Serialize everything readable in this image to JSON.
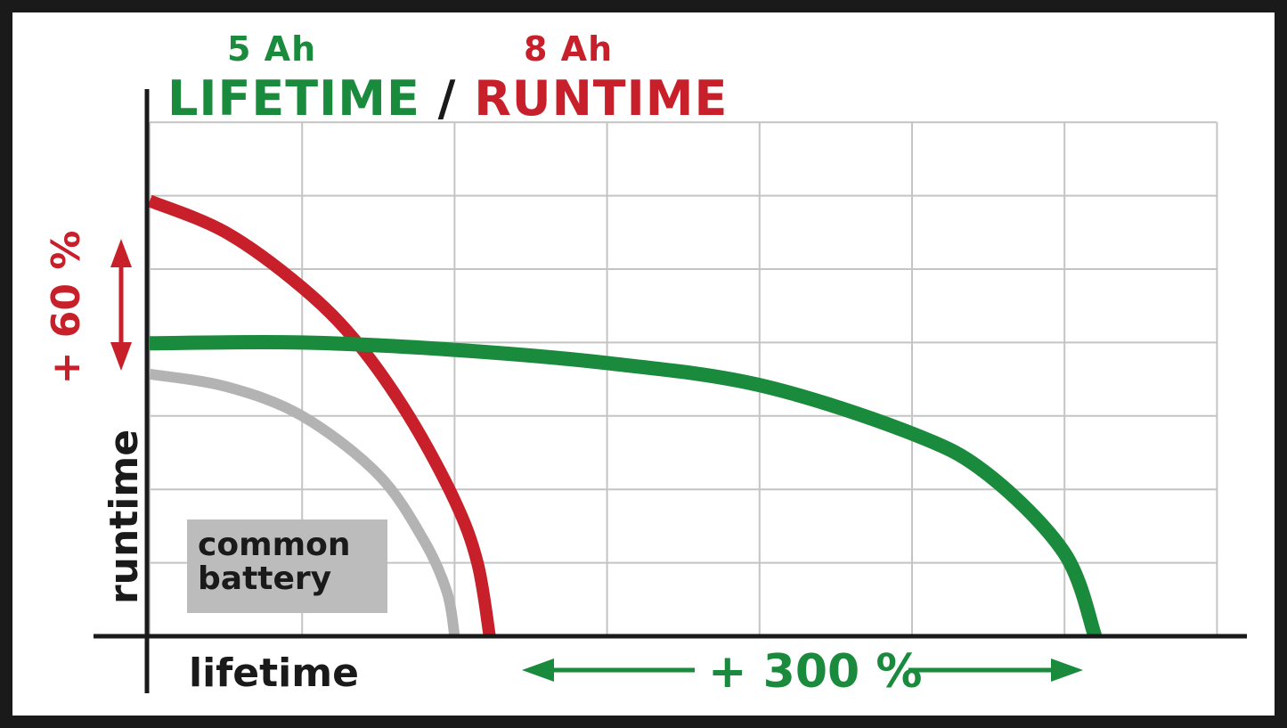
{
  "chart_data": {
    "type": "line",
    "title": {
      "left": "LIFETIME",
      "separator": "/",
      "right": "RUNTIME"
    },
    "subtitles": {
      "left": "5 Ah",
      "right": "8 Ah"
    },
    "xlabel": "lifetime",
    "ylabel": "runtime",
    "xlim": [
      0,
      7
    ],
    "ylim": [
      0,
      7
    ],
    "grid": true,
    "series": [
      {
        "name": "common battery",
        "color": "#b3b3b4",
        "points": [
          [
            0,
            3.57
          ],
          [
            0.5,
            3.4
          ],
          [
            1,
            3.0
          ],
          [
            1.5,
            2.2
          ],
          [
            1.8,
            1.3
          ],
          [
            1.95,
            0.6
          ],
          [
            2.0,
            0
          ]
        ]
      },
      {
        "color": "#c8202a",
        "points": [
          [
            0,
            5.93
          ],
          [
            0.5,
            5.5
          ],
          [
            1,
            4.75
          ],
          [
            1.36,
            4.0
          ],
          [
            1.7,
            3.0
          ],
          [
            2.0,
            1.85
          ],
          [
            2.15,
            1.0
          ],
          [
            2.23,
            0
          ]
        ]
      },
      {
        "color": "#1a8a3c",
        "points": [
          [
            0,
            3.99
          ],
          [
            1,
            4.0
          ],
          [
            2,
            3.9
          ],
          [
            3,
            3.72
          ],
          [
            4,
            3.42
          ],
          [
            5,
            2.76
          ],
          [
            5.5,
            2.2
          ],
          [
            6,
            1.13
          ],
          [
            6.2,
            0
          ]
        ]
      }
    ],
    "annotations": [
      {
        "text": "+ 60 %",
        "color": "#c8202a",
        "arrow": "vertical-double"
      },
      {
        "text": "+ 300 %",
        "color": "#1a8a3c",
        "arrow": "horizontal-double"
      }
    ],
    "legend_box": {
      "text": [
        "common",
        "battery"
      ],
      "placement": "bottom-left"
    }
  },
  "colors": {
    "green": "#1a8a3c",
    "red": "#c8202a",
    "gray": "#b3b3b4",
    "black": "#1a1a1a"
  }
}
